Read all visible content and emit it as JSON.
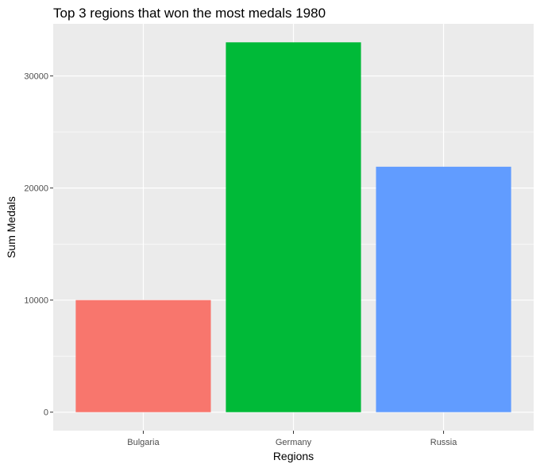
{
  "chart_data": {
    "type": "bar",
    "title": "Top 3 regions that won the most medals 1980",
    "xlabel": "Regions",
    "ylabel": "Sum Medals",
    "categories": [
      "Bulgaria",
      "Germany",
      "Russia"
    ],
    "values": [
      10000,
      33000,
      21900
    ],
    "colors": [
      "#F8766D",
      "#00BA38",
      "#619CFF"
    ],
    "ylim": [
      -1650,
      34650
    ],
    "yticks": [
      0,
      10000,
      20000,
      30000
    ],
    "ytick_labels": [
      "0",
      "10000",
      "20000",
      "30000"
    ],
    "grid": true,
    "legend": "none",
    "panel_background": "#EBEBEB",
    "grid_color": "#FFFFFF"
  }
}
